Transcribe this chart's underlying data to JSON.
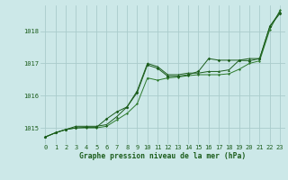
{
  "background_color": "#cce8e8",
  "grid_color": "#aacccc",
  "line_color_dark": "#1a5c1a",
  "line_color_medium": "#2d7a2d",
  "xlabel": "Graphe pression niveau de la mer (hPa)",
  "ylim": [
    1014.5,
    1018.8
  ],
  "xlim": [
    -0.5,
    23.5
  ],
  "yticks": [
    1015,
    1016,
    1017,
    1018
  ],
  "xticks": [
    0,
    1,
    2,
    3,
    4,
    5,
    6,
    7,
    8,
    9,
    10,
    11,
    12,
    13,
    14,
    15,
    16,
    17,
    18,
    19,
    20,
    21,
    22,
    23
  ],
  "series1_x": [
    0,
    1,
    2,
    3,
    4,
    5,
    6,
    7,
    8,
    9,
    10,
    11,
    12,
    13,
    14,
    15,
    16,
    17,
    18,
    19,
    20,
    21,
    22,
    23
  ],
  "series1_y": [
    1014.72,
    1014.85,
    1014.95,
    1015.0,
    1015.02,
    1015.02,
    1015.28,
    1015.5,
    1015.65,
    1016.1,
    1016.95,
    1016.85,
    1016.6,
    1016.6,
    1016.65,
    1016.75,
    1017.15,
    1017.1,
    1017.1,
    1017.1,
    1017.08,
    1017.15,
    1018.15,
    1018.55
  ],
  "series2_x": [
    0,
    1,
    2,
    3,
    4,
    5,
    6,
    7,
    8,
    9,
    10,
    11,
    12,
    13,
    14,
    15,
    16,
    17,
    18,
    19,
    20,
    21,
    22,
    23
  ],
  "series2_y": [
    1014.72,
    1014.85,
    1014.95,
    1015.05,
    1015.05,
    1015.05,
    1015.1,
    1015.35,
    1015.65,
    1016.15,
    1017.0,
    1016.9,
    1016.65,
    1016.65,
    1016.7,
    1016.7,
    1016.75,
    1016.75,
    1016.8,
    1017.1,
    1017.15,
    1017.15,
    1018.15,
    1018.6
  ],
  "series3_x": [
    0,
    1,
    2,
    3,
    4,
    5,
    6,
    7,
    8,
    9,
    10,
    11,
    12,
    13,
    14,
    15,
    16,
    17,
    18,
    19,
    20,
    21,
    22,
    23
  ],
  "series3_y": [
    1014.72,
    1014.85,
    1014.95,
    1015.0,
    1015.0,
    1015.0,
    1015.05,
    1015.25,
    1015.45,
    1015.75,
    1016.55,
    1016.48,
    1016.55,
    1016.58,
    1016.62,
    1016.65,
    1016.65,
    1016.65,
    1016.68,
    1016.82,
    1017.0,
    1017.08,
    1018.05,
    1018.65
  ],
  "tick_fontsize": 5.0,
  "xlabel_fontsize": 5.8
}
